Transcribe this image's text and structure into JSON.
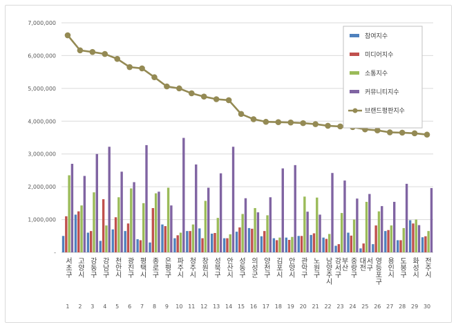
{
  "chart_data": {
    "type": "bar",
    "title": "",
    "xlabel": "",
    "ylabel": "",
    "ylim": [
      0,
      7000000
    ],
    "yticks": [
      0,
      1000000,
      2000000,
      3000000,
      4000000,
      5000000,
      6000000,
      7000000
    ],
    "ytick_labels": [
      "-",
      "1,000,000",
      "2,000,000",
      "3,000,000",
      "4,000,000",
      "5,000,000",
      "6,000,000",
      "7,000,000"
    ],
    "grid": true,
    "legend_position": "top-right",
    "categories": [
      "서초구",
      "고양시",
      "강동구",
      "강남구",
      "천안시",
      "광진구",
      "평택시",
      "종로구",
      "은평구",
      "파주시",
      "청주시",
      "창원시",
      "성북구",
      "안산시",
      "성동구",
      "의성군",
      "양천구",
      "김포시",
      "안양시",
      "관악구",
      "노원구",
      "남양주시",
      "강서구 부산",
      "중랑구",
      "대전 서구",
      "영등포구",
      "용인시",
      "도봉구",
      "화성시",
      "전주시"
    ],
    "ranks": [
      "1",
      "2",
      "3",
      "4",
      "5",
      "6",
      "7",
      "8",
      "9",
      "10",
      "11",
      "12",
      "13",
      "14",
      "15",
      "16",
      "17",
      "18",
      "19",
      "20",
      "21",
      "22",
      "23",
      "24",
      "25",
      "26",
      "27",
      "28",
      "29",
      "30"
    ],
    "series": [
      {
        "name": "참여지수",
        "color": "#4f81bd",
        "values": [
          500000,
          1150000,
          600000,
          350000,
          700000,
          650000,
          400000,
          300000,
          850000,
          430000,
          650000,
          730000,
          570000,
          430000,
          630000,
          740000,
          490000,
          430000,
          450000,
          500000,
          530000,
          450000,
          200000,
          600000,
          120000,
          250000,
          650000,
          370000,
          980000,
          460000
        ]
      },
      {
        "name": "미디어지수",
        "color": "#c0504d",
        "values": [
          1100000,
          1250000,
          650000,
          1620000,
          1070000,
          880000,
          370000,
          1350000,
          800000,
          520000,
          650000,
          430000,
          590000,
          430000,
          760000,
          720000,
          650000,
          370000,
          380000,
          500000,
          580000,
          410000,
          250000,
          510000,
          270000,
          820000,
          680000,
          370000,
          880000,
          490000
        ]
      },
      {
        "name": "소통지수",
        "color": "#9bbb59",
        "values": [
          2350000,
          1430000,
          1830000,
          820000,
          1680000,
          1950000,
          1500000,
          1800000,
          1970000,
          600000,
          850000,
          1570000,
          1050000,
          550000,
          1170000,
          1350000,
          1130000,
          450000,
          470000,
          1700000,
          1670000,
          560000,
          1200000,
          1000000,
          1540000,
          1250000,
          820000,
          740000,
          1000000,
          650000
        ]
      },
      {
        "name": "커뮤니티지수",
        "color": "#8064a2",
        "values": [
          2700000,
          2330000,
          3000000,
          3220000,
          2460000,
          2140000,
          3270000,
          1850000,
          1430000,
          3490000,
          2680000,
          1970000,
          2410000,
          3220000,
          1650000,
          1220000,
          1680000,
          2560000,
          2660000,
          1240000,
          1150000,
          2420000,
          2190000,
          1640000,
          1780000,
          1410000,
          1540000,
          2090000,
          830000,
          1960000
        ]
      }
    ],
    "line_series": {
      "name": "브랜드평판지수",
      "color": "#948a54",
      "values": [
        6620000,
        6160000,
        6110000,
        6050000,
        5900000,
        5650000,
        5610000,
        5340000,
        5060000,
        5000000,
        4850000,
        4750000,
        4670000,
        4640000,
        4220000,
        4060000,
        3980000,
        3970000,
        3960000,
        3940000,
        3910000,
        3860000,
        3840000,
        3820000,
        3750000,
        3720000,
        3660000,
        3650000,
        3630000,
        3590000
      ]
    }
  }
}
